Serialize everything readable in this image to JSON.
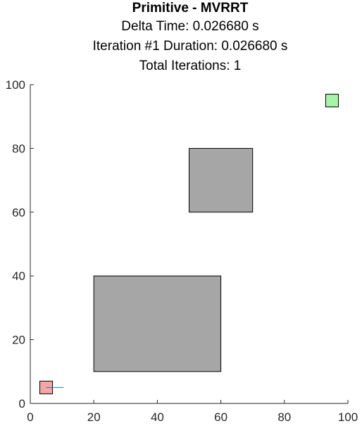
{
  "chart_data": {
    "type": "scatter",
    "title": "Primitive - MVRRT",
    "subtitle_lines": [
      "Delta Time: 0.026680 s",
      "Iteration #1 Duration: 0.026680 s",
      "Total Iterations: 1"
    ],
    "xlabel": "",
    "ylabel": "",
    "xlim": [
      0,
      100
    ],
    "ylim": [
      0,
      100
    ],
    "xticks": [
      0,
      20,
      40,
      60,
      80,
      100
    ],
    "yticks": [
      0,
      20,
      40,
      60,
      80,
      100
    ],
    "xtick_labels": [
      "0",
      "20",
      "40",
      "60",
      "80",
      "100"
    ],
    "ytick_labels": [
      "0",
      "20",
      "40",
      "60",
      "80",
      "100"
    ],
    "grid": false,
    "box": false,
    "obstacles": [
      {
        "x": 20,
        "y": 10,
        "width": 40,
        "height": 30,
        "color": "#a6a6a6"
      },
      {
        "x": 50,
        "y": 60,
        "width": 20,
        "height": 20,
        "color": "#a6a6a6"
      }
    ],
    "start": {
      "x": 3,
      "y": 3,
      "width": 4,
      "height": 4,
      "color": "#f4a6a6"
    },
    "goal": {
      "x": 93,
      "y": 93,
      "width": 4,
      "height": 4,
      "color": "#a6f4a6"
    },
    "tree_edges": [
      {
        "x": [
          5,
          10.5
        ],
        "y": [
          5,
          5
        ],
        "color": "#1f77b4"
      }
    ]
  }
}
